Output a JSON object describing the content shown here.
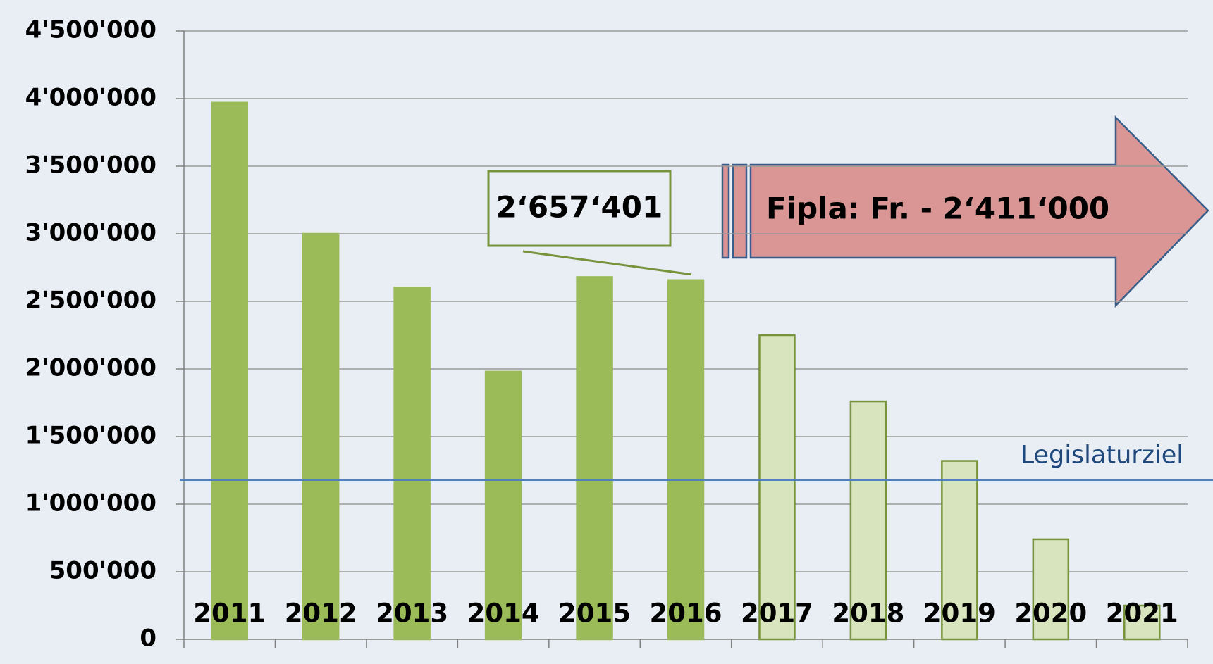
{
  "chart_data": {
    "type": "bar",
    "categories": [
      "2011",
      "2012",
      "2013",
      "2014",
      "2015",
      "2016",
      "2017",
      "2018",
      "2019",
      "2020",
      "2021"
    ],
    "values": [
      3970000,
      3000000,
      2600000,
      1980000,
      2680000,
      2657401,
      2250000,
      1760000,
      1320000,
      740000,
      250000
    ],
    "value_labels": [
      null,
      null,
      null,
      null,
      null,
      "2‘657‘401",
      null,
      null,
      null,
      null,
      null
    ],
    "colors": [
      "#9bbb59",
      "#9bbb59",
      "#9bbb59",
      "#9bbb59",
      "#9bbb59",
      "#9bbb59",
      "#d7e4bd",
      "#d7e4bd",
      "#d7e4bd",
      "#d7e4bd",
      "#d7e4bd"
    ],
    "edgecolors": [
      "#9bbb59",
      "#9bbb59",
      "#9bbb59",
      "#9bbb59",
      "#9bbb59",
      "#9bbb59",
      "#77933c",
      "#77933c",
      "#77933c",
      "#77933c",
      "#77933c"
    ],
    "ylim": [
      0,
      4500000
    ],
    "yticks": [
      0,
      {
        "value": 500000,
        "label": "500'000"
      },
      {
        "value": 1000000,
        "label": "1'000'000"
      },
      {
        "value": 1500000,
        "label": "1'500'000"
      },
      {
        "value": 2000000,
        "label": "2'000'000"
      },
      {
        "value": 2500000,
        "label": "2'500'000"
      },
      {
        "value": 3000000,
        "label": "3'000'000"
      },
      {
        "value": 3500000,
        "label": "3'500'000"
      },
      {
        "value": 4000000,
        "label": "4'000'000"
      },
      {
        "value": 4500000,
        "label": "4'500'000"
      }
    ],
    "grid": true,
    "hline": {
      "value": 1180000,
      "label": "Legislaturziel",
      "color": "#4f81bd"
    },
    "annotation": {
      "text": "Fipla:  Fr.  - 2‘411‘000",
      "color": "#d99694"
    }
  }
}
